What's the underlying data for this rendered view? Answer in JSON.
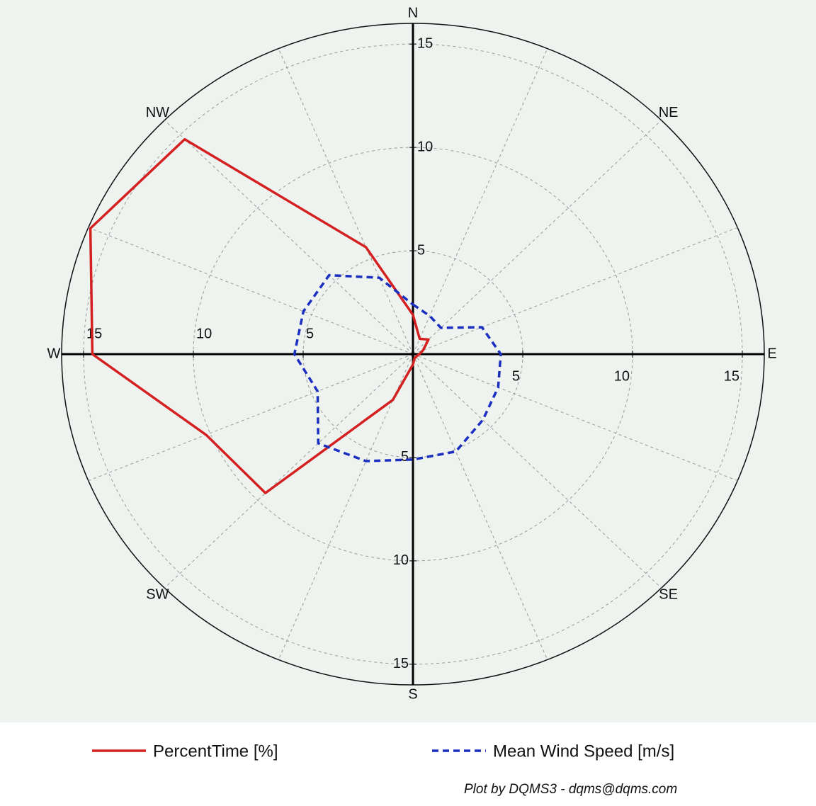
{
  "chart_data": {
    "type": "radar",
    "categories": [
      "N",
      null,
      null,
      null,
      "E",
      null,
      null,
      null,
      "S",
      null,
      null,
      null,
      "W",
      null,
      null,
      null
    ],
    "compass_labels": [
      "N",
      "NE",
      "E",
      "SE",
      "S",
      "SW",
      "W",
      "NW"
    ],
    "series": [
      {
        "name": "PercentTime [%]",
        "color": "#d42020",
        "linestyle": "solid",
        "values": [
          1.9,
          0.8,
          1.0,
          0.5,
          0.3,
          0.2,
          0.2,
          0.2,
          0.5,
          2.4,
          9.5,
          10.2,
          14.6,
          15.9,
          14.7,
          5.6
        ]
      },
      {
        "name": "Mean Wind Speed [m/s]",
        "color": "#1a2fc0",
        "linestyle": "dashed",
        "values": [
          2.4,
          2.0,
          1.8,
          3.4,
          4.0,
          4.2,
          4.5,
          5.1,
          5.1,
          5.6,
          6.1,
          4.7,
          5.4,
          5.4,
          5.4,
          4.0
        ]
      }
    ],
    "rlim": [
      0,
      16
    ],
    "rticks": [
      5,
      10,
      15
    ],
    "grid": true,
    "footer": "Plot by DQMS3 - dqms@dqms.com"
  }
}
